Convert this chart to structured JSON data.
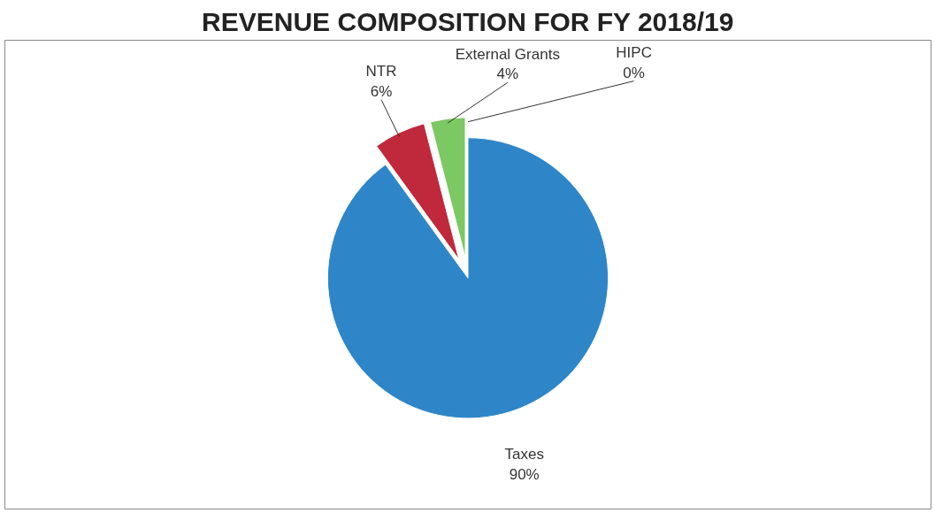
{
  "chart_data": {
    "type": "pie",
    "title": "REVENUE COMPOSITION FOR FY 2018/19",
    "categories": [
      "Taxes",
      "NTR",
      "External Grants",
      "HIPC"
    ],
    "values": [
      90,
      6,
      4,
      0
    ],
    "value_labels": [
      "90%",
      "6%",
      "4%",
      "0%"
    ],
    "colors": [
      "#2e86c8",
      "#c0283c",
      "#7cc862",
      "#f0f0f0"
    ],
    "legend": false
  }
}
